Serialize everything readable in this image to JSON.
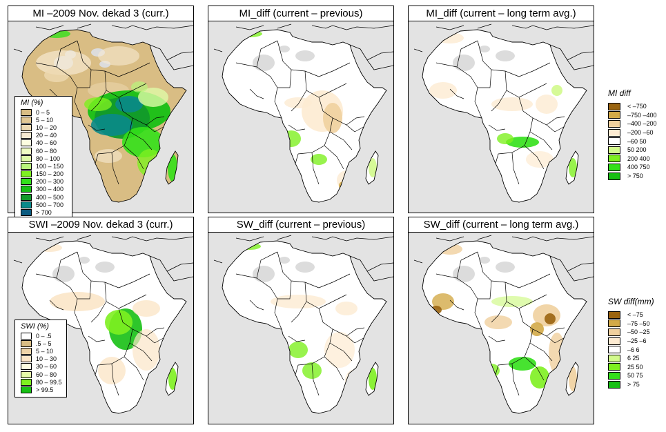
{
  "panels": [
    {
      "id": "mi-curr",
      "title": "MI –2009 Nov. dekad 3 (curr.)",
      "scheme": "mi"
    },
    {
      "id": "mi-diff-prev",
      "title": "MI_diff (current – previous)",
      "scheme": "midiff1"
    },
    {
      "id": "mi-diff-lta",
      "title": "MI_diff (current – long term avg.)",
      "scheme": "midiff2"
    },
    {
      "id": "swi-curr",
      "title": "SWI –2009 Nov. dekad 3 (curr.)",
      "scheme": "swi"
    },
    {
      "id": "sw-diff-prev",
      "title": "SW_diff (current – previous)",
      "scheme": "swdiff1"
    },
    {
      "id": "sw-diff-lta",
      "title": "SW_diff (current – long term avg.)",
      "scheme": "swdiff2"
    }
  ],
  "legends": {
    "mi": {
      "title": "MI (%)",
      "items": [
        {
          "label": "0 – 5",
          "color": "#d9bd84"
        },
        {
          "label": "5 – 10",
          "color": "#e2c794"
        },
        {
          "label": "10 – 20",
          "color": "#edd9b2"
        },
        {
          "label": "20 – 40",
          "color": "#f7ead2"
        },
        {
          "label": "40 – 60",
          "color": "#fdfde0"
        },
        {
          "label": "60 – 80",
          "color": "#f0fcc4"
        },
        {
          "label": "80 – 100",
          "color": "#defaa8"
        },
        {
          "label": "100 – 150",
          "color": "#b8f57c"
        },
        {
          "label": "150 – 200",
          "color": "#7ef020"
        },
        {
          "label": "200 – 300",
          "color": "#33e01a"
        },
        {
          "label": "300 – 400",
          "color": "#17c014"
        },
        {
          "label": "400 – 500",
          "color": "#129a2a"
        },
        {
          "label": "500 – 700",
          "color": "#0a8a8a"
        },
        {
          "label": "> 700",
          "color": "#0b5b80"
        }
      ]
    },
    "swi": {
      "title": "SWI (%)",
      "items": [
        {
          "label": "0 – .5",
          "color": "#ffffff"
        },
        {
          "label": ".5 – 5",
          "color": "#d9bd84"
        },
        {
          "label": "5 – 10",
          "color": "#edd3a8"
        },
        {
          "label": "10 – 30",
          "color": "#fbe6c8"
        },
        {
          "label": "30 – 60",
          "color": "#fdfde0"
        },
        {
          "label": "60 – 80",
          "color": "#e4faa8"
        },
        {
          "label": "80 – 99.5",
          "color": "#7ef020"
        },
        {
          "label": "> 99.5",
          "color": "#17c014"
        }
      ]
    },
    "mi_diff": {
      "title": "MI diff",
      "items": [
        {
          "label": "< –750",
          "color": "#9a6410"
        },
        {
          "label": "–750 –400",
          "color": "#d3aa48"
        },
        {
          "label": "–400 –200",
          "color": "#f0d09e"
        },
        {
          "label": "–200 –60",
          "color": "#fdebd2"
        },
        {
          "label": "–60  50",
          "color": "#ffffff"
        },
        {
          "label": "50  200",
          "color": "#d2fa8c"
        },
        {
          "label": "200  400",
          "color": "#7ef020"
        },
        {
          "label": "400  750",
          "color": "#33e01a"
        },
        {
          "label": "> 750",
          "color": "#17c014"
        }
      ]
    },
    "sw_diff": {
      "title": "SW diff(mm)",
      "items": [
        {
          "label": "< –75",
          "color": "#9a6410"
        },
        {
          "label": "–75 –50",
          "color": "#d3aa48"
        },
        {
          "label": "–50 –25",
          "color": "#f0d09e"
        },
        {
          "label": "–25  –6",
          "color": "#fdebd2"
        },
        {
          "label": "–6  6",
          "color": "#ffffff"
        },
        {
          "label": "6  25",
          "color": "#d2fa8c"
        },
        {
          "label": "25  50",
          "color": "#7ef020"
        },
        {
          "label": "50  75",
          "color": "#33e01a"
        },
        {
          "label": "> 75",
          "color": "#17c014"
        }
      ]
    }
  },
  "colors": {
    "sea": "#e3e3e3",
    "nodata": "#dcdcdc",
    "border": "#000000"
  }
}
